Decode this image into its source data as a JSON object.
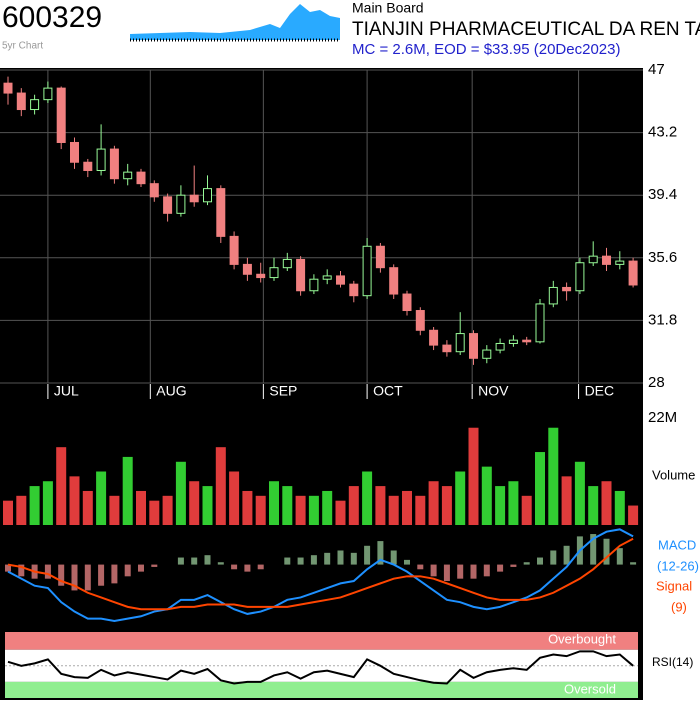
{
  "header": {
    "code": "600329",
    "sparkline_label": "5yr Chart",
    "board": "Main Board",
    "name": "TIANJIN PHARMACEUTICAL DA REN TANG",
    "info": "MC = 2.6M, EOD = $33.95 (20Dec2023)"
  },
  "chart_data": [
    {
      "type": "candlestick",
      "up_color": "#98fb98",
      "down_color": "#f08080",
      "grid": true,
      "open": [
        46.2,
        45.6,
        44.6,
        45.2,
        45.9,
        42.6,
        41.4,
        40.9,
        42.2,
        40.4,
        40.8,
        40.1,
        39.3,
        38.3,
        39.4,
        39.0,
        39.8,
        36.9,
        35.2,
        34.6,
        34.4,
        35.0,
        35.5,
        33.6,
        34.3,
        34.5,
        34.0,
        33.3,
        36.3,
        35.0,
        33.4,
        32.4,
        31.2,
        30.3,
        29.9,
        31.0,
        29.5,
        30.0,
        30.4,
        30.6,
        30.5,
        32.8,
        33.8,
        33.6,
        35.3,
        35.7,
        35.2,
        35.4
      ],
      "high": [
        46.6,
        45.9,
        45.5,
        46.3,
        46.0,
        42.9,
        41.6,
        43.7,
        42.4,
        41.3,
        41.0,
        40.3,
        39.5,
        40.0,
        41.2,
        40.6,
        40.0,
        37.2,
        35.6,
        35.3,
        35.6,
        35.9,
        35.7,
        34.6,
        34.9,
        34.8,
        34.2,
        36.8,
        36.5,
        35.2,
        33.6,
        32.6,
        31.4,
        30.6,
        32.3,
        31.2,
        30.3,
        30.7,
        30.9,
        30.8,
        33.1,
        34.2,
        34.1,
        35.6,
        36.6,
        36.2,
        36.0,
        35.6
      ],
      "low": [
        44.9,
        44.2,
        44.3,
        45.0,
        42.2,
        41.0,
        40.5,
        40.6,
        40.1,
        40.0,
        39.9,
        39.0,
        37.8,
        38.1,
        38.7,
        38.8,
        36.5,
        34.9,
        34.2,
        34.1,
        34.2,
        34.8,
        33.3,
        33.4,
        34.0,
        33.8,
        32.9,
        33.1,
        34.7,
        33.1,
        32.1,
        30.9,
        30.0,
        29.6,
        29.7,
        29.1,
        29.2,
        29.8,
        30.2,
        30.3,
        30.4,
        32.6,
        33.0,
        33.4,
        35.1,
        34.8,
        34.9,
        33.8
      ],
      "close": [
        45.6,
        44.6,
        45.2,
        45.9,
        42.6,
        41.4,
        40.9,
        42.2,
        40.4,
        40.8,
        40.1,
        39.3,
        38.3,
        39.4,
        39.0,
        39.8,
        36.9,
        35.2,
        34.6,
        34.4,
        35.0,
        35.5,
        33.6,
        34.3,
        34.5,
        34.0,
        33.3,
        36.3,
        35.0,
        33.4,
        32.4,
        31.2,
        30.3,
        29.9,
        31.0,
        29.5,
        30.0,
        30.4,
        30.6,
        30.5,
        32.8,
        33.8,
        33.6,
        35.3,
        35.7,
        35.2,
        35.4,
        33.95
      ],
      "ylim": [
        28,
        47
      ],
      "yticks": [
        47,
        43.2,
        39.4,
        35.6,
        31.8,
        28
      ],
      "xticks": [
        {
          "value": 3,
          "label": "JUL"
        },
        {
          "value": 10.7,
          "label": "AUG"
        },
        {
          "value": 19.2,
          "label": "SEP"
        },
        {
          "value": 27,
          "label": "OCT"
        },
        {
          "value": 34.9,
          "label": "NOV"
        },
        {
          "value": 42.9,
          "label": "DEC"
        }
      ]
    },
    {
      "type": "bar",
      "label": "Volume",
      "values": [
        5,
        6,
        8,
        9,
        16,
        10,
        7,
        11,
        6,
        14,
        7,
        5,
        6,
        13,
        9,
        8,
        16,
        11,
        7,
        6,
        9,
        8,
        6,
        6,
        7,
        5,
        8,
        11,
        8,
        6,
        7,
        6,
        9,
        8,
        11,
        20,
        12,
        8,
        9,
        6,
        15,
        20,
        10,
        13,
        8,
        9,
        7,
        4
      ],
      "ylim": [
        0,
        22
      ],
      "yticks": [
        {
          "value": 22,
          "label": "22M"
        }
      ]
    },
    {
      "type": "macd",
      "ylim": [
        -2.7,
        1.6
      ],
      "series": [
        {
          "name": "MACD",
          "params": "(12-26)",
          "color": "#1e90ff",
          "values": [
            -0.3,
            -0.6,
            -0.9,
            -1.0,
            -1.6,
            -2.0,
            -2.3,
            -2.3,
            -2.4,
            -2.3,
            -2.2,
            -2.0,
            -1.9,
            -1.5,
            -1.5,
            -1.3,
            -1.6,
            -1.9,
            -2.1,
            -2.0,
            -1.8,
            -1.5,
            -1.4,
            -1.2,
            -1.0,
            -0.8,
            -0.7,
            -0.2,
            0.2,
            0.0,
            -0.3,
            -0.7,
            -1.1,
            -1.5,
            -1.6,
            -1.8,
            -1.9,
            -1.8,
            -1.6,
            -1.4,
            -1.1,
            -0.6,
            -0.1,
            0.6,
            1.1,
            1.4,
            1.5,
            1.2
          ]
        },
        {
          "name": "Signal",
          "params": "(9)",
          "color": "#ff4500",
          "values": [
            0.0,
            -0.1,
            -0.3,
            -0.4,
            -0.7,
            -0.9,
            -1.2,
            -1.4,
            -1.6,
            -1.8,
            -1.9,
            -1.9,
            -1.9,
            -1.8,
            -1.8,
            -1.7,
            -1.7,
            -1.7,
            -1.8,
            -1.8,
            -1.8,
            -1.8,
            -1.7,
            -1.6,
            -1.5,
            -1.4,
            -1.2,
            -1.0,
            -0.8,
            -0.6,
            -0.5,
            -0.5,
            -0.6,
            -0.8,
            -1.0,
            -1.2,
            -1.4,
            -1.5,
            -1.5,
            -1.5,
            -1.4,
            -1.2,
            -0.9,
            -0.6,
            -0.2,
            0.3,
            0.8,
            1.1
          ]
        }
      ],
      "histogram": [
        -0.3,
        -0.5,
        -0.6,
        -0.6,
        -0.9,
        -1.1,
        -1.1,
        -0.9,
        -0.8,
        -0.5,
        -0.3,
        -0.1,
        0.0,
        0.3,
        0.3,
        0.4,
        0.1,
        -0.2,
        -0.3,
        -0.2,
        0.0,
        0.3,
        0.3,
        0.4,
        0.5,
        0.6,
        0.5,
        0.8,
        1.0,
        0.6,
        0.2,
        -0.2,
        -0.5,
        -0.7,
        -0.6,
        -0.6,
        -0.5,
        -0.3,
        -0.1,
        0.1,
        0.3,
        0.6,
        0.8,
        1.2,
        1.3,
        1.1,
        0.7,
        0.1
      ]
    },
    {
      "type": "rsi",
      "ylim": [
        10,
        92
      ],
      "midline": 50,
      "overbought": {
        "label": "Overbought",
        "value": 70
      },
      "oversold": {
        "label": "Oversold",
        "value": 30
      },
      "series": [
        {
          "name": "RSI(14)",
          "color": "#000000",
          "values": [
            55,
            50,
            53,
            58,
            40,
            36,
            35,
            45,
            38,
            42,
            39,
            36,
            33,
            44,
            40,
            46,
            32,
            28,
            30,
            30,
            38,
            42,
            34,
            42,
            44,
            40,
            36,
            58,
            50,
            40,
            36,
            32,
            29,
            28,
            45,
            35,
            42,
            45,
            47,
            45,
            60,
            64,
            62,
            68,
            68,
            62,
            64,
            50
          ]
        }
      ]
    }
  ]
}
